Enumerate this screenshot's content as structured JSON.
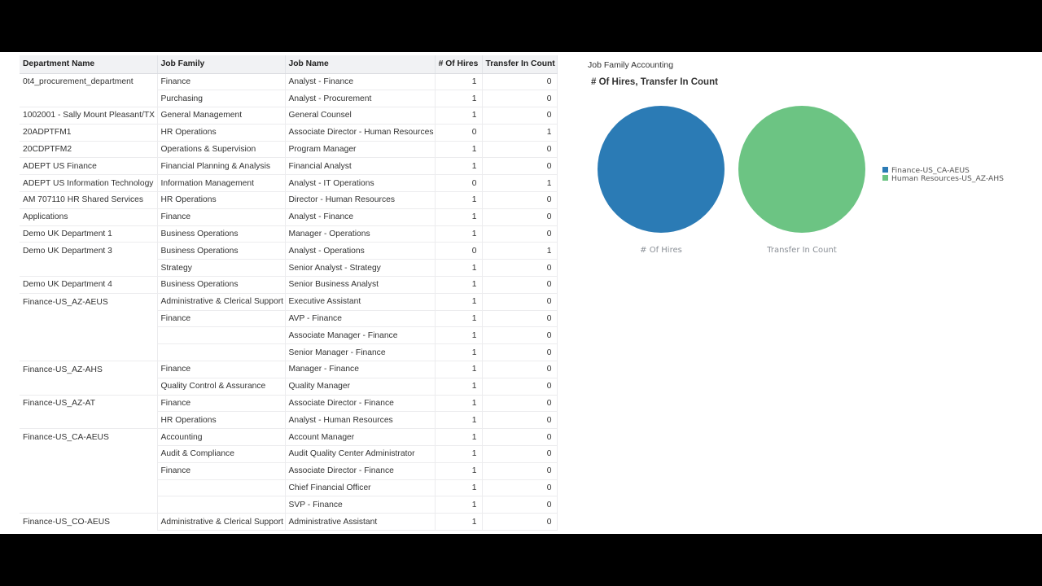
{
  "table": {
    "headers": [
      "Department Name",
      "Job Family",
      "Job Name",
      "# Of Hires",
      "Transfer In Count"
    ],
    "rows": [
      [
        "0t4_procurement_department",
        "Finance",
        "Analyst - Finance",
        "1",
        "0"
      ],
      [
        "",
        "Purchasing",
        "Analyst - Procurement",
        "1",
        "0"
      ],
      [
        "1002001 - Sally Mount Pleasant/TX",
        "General Management",
        "General Counsel",
        "1",
        "0"
      ],
      [
        "20ADPTFM1",
        "HR Operations",
        "Associate Director - Human Resources",
        "0",
        "1"
      ],
      [
        "20CDPTFM2",
        "Operations & Supervision",
        "Program Manager",
        "1",
        "0"
      ],
      [
        "ADEPT US Finance",
        "Financial Planning & Analysis",
        "Financial Analyst",
        "1",
        "0"
      ],
      [
        "ADEPT US Information Technology",
        "Information Management",
        "Analyst - IT Operations",
        "0",
        "1"
      ],
      [
        "AM 707110 HR Shared Services",
        "HR Operations",
        "Director - Human Resources",
        "1",
        "0"
      ],
      [
        "Applications",
        "Finance",
        "Analyst - Finance",
        "1",
        "0"
      ],
      [
        "Demo UK Department 1",
        "Business Operations",
        "Manager - Operations",
        "1",
        "0"
      ],
      [
        "Demo UK Department 3",
        "Business Operations",
        "Analyst - Operations",
        "0",
        "1"
      ],
      [
        "",
        "Strategy",
        "Senior Analyst - Strategy",
        "1",
        "0"
      ],
      [
        "Demo UK Department 4",
        "Business Operations",
        "Senior Business Analyst",
        "1",
        "0"
      ],
      [
        "Finance-US_AZ-AEUS",
        "Administrative & Clerical Support",
        "Executive Assistant",
        "1",
        "0"
      ],
      [
        "",
        "Finance",
        "AVP - Finance",
        "1",
        "0"
      ],
      [
        "",
        "",
        "Associate Manager - Finance",
        "1",
        "0"
      ],
      [
        "",
        "",
        "Senior Manager - Finance",
        "1",
        "0"
      ],
      [
        "Finance-US_AZ-AHS",
        "Finance",
        "Manager - Finance",
        "1",
        "0"
      ],
      [
        "",
        "Quality Control & Assurance",
        "Quality Manager",
        "1",
        "0"
      ],
      [
        "Finance-US_AZ-AT",
        "Finance",
        "Associate Director - Finance",
        "1",
        "0"
      ],
      [
        "",
        "HR Operations",
        "Analyst - Human Resources",
        "1",
        "0"
      ],
      [
        "Finance-US_CA-AEUS",
        "Accounting",
        "Account Manager",
        "1",
        "0"
      ],
      [
        "",
        "Audit & Compliance",
        "Audit Quality Center Administrator",
        "1",
        "0"
      ],
      [
        "",
        "Finance",
        "Associate Director - Finance",
        "1",
        "0"
      ],
      [
        "",
        "",
        "Chief Financial Officer",
        "1",
        "0"
      ],
      [
        "",
        "",
        "SVP - Finance",
        "1",
        "0"
      ],
      [
        "Finance-US_CO-AEUS",
        "Administrative & Clerical Support",
        "Administrative Assistant",
        "1",
        "0"
      ]
    ]
  },
  "panel": {
    "filter_label": "Job Family Accounting"
  },
  "chart_data": {
    "type": "pie",
    "title": "# Of Hires, Transfer In Count",
    "pies": [
      {
        "label": "# Of Hires",
        "slices": [
          {
            "name": "Finance-US_CA-AEUS",
            "value": 1
          }
        ]
      },
      {
        "label": "Transfer In Count",
        "slices": [
          {
            "name": "Human Resources-US_AZ-AHS",
            "value": 1
          }
        ]
      }
    ],
    "legend": [
      {
        "name": "Finance-US_CA-AEUS",
        "color": "#2b7bb5"
      },
      {
        "name": "Human Resources-US_AZ-AHS",
        "color": "#6cc483"
      }
    ],
    "legend_position": "right"
  }
}
